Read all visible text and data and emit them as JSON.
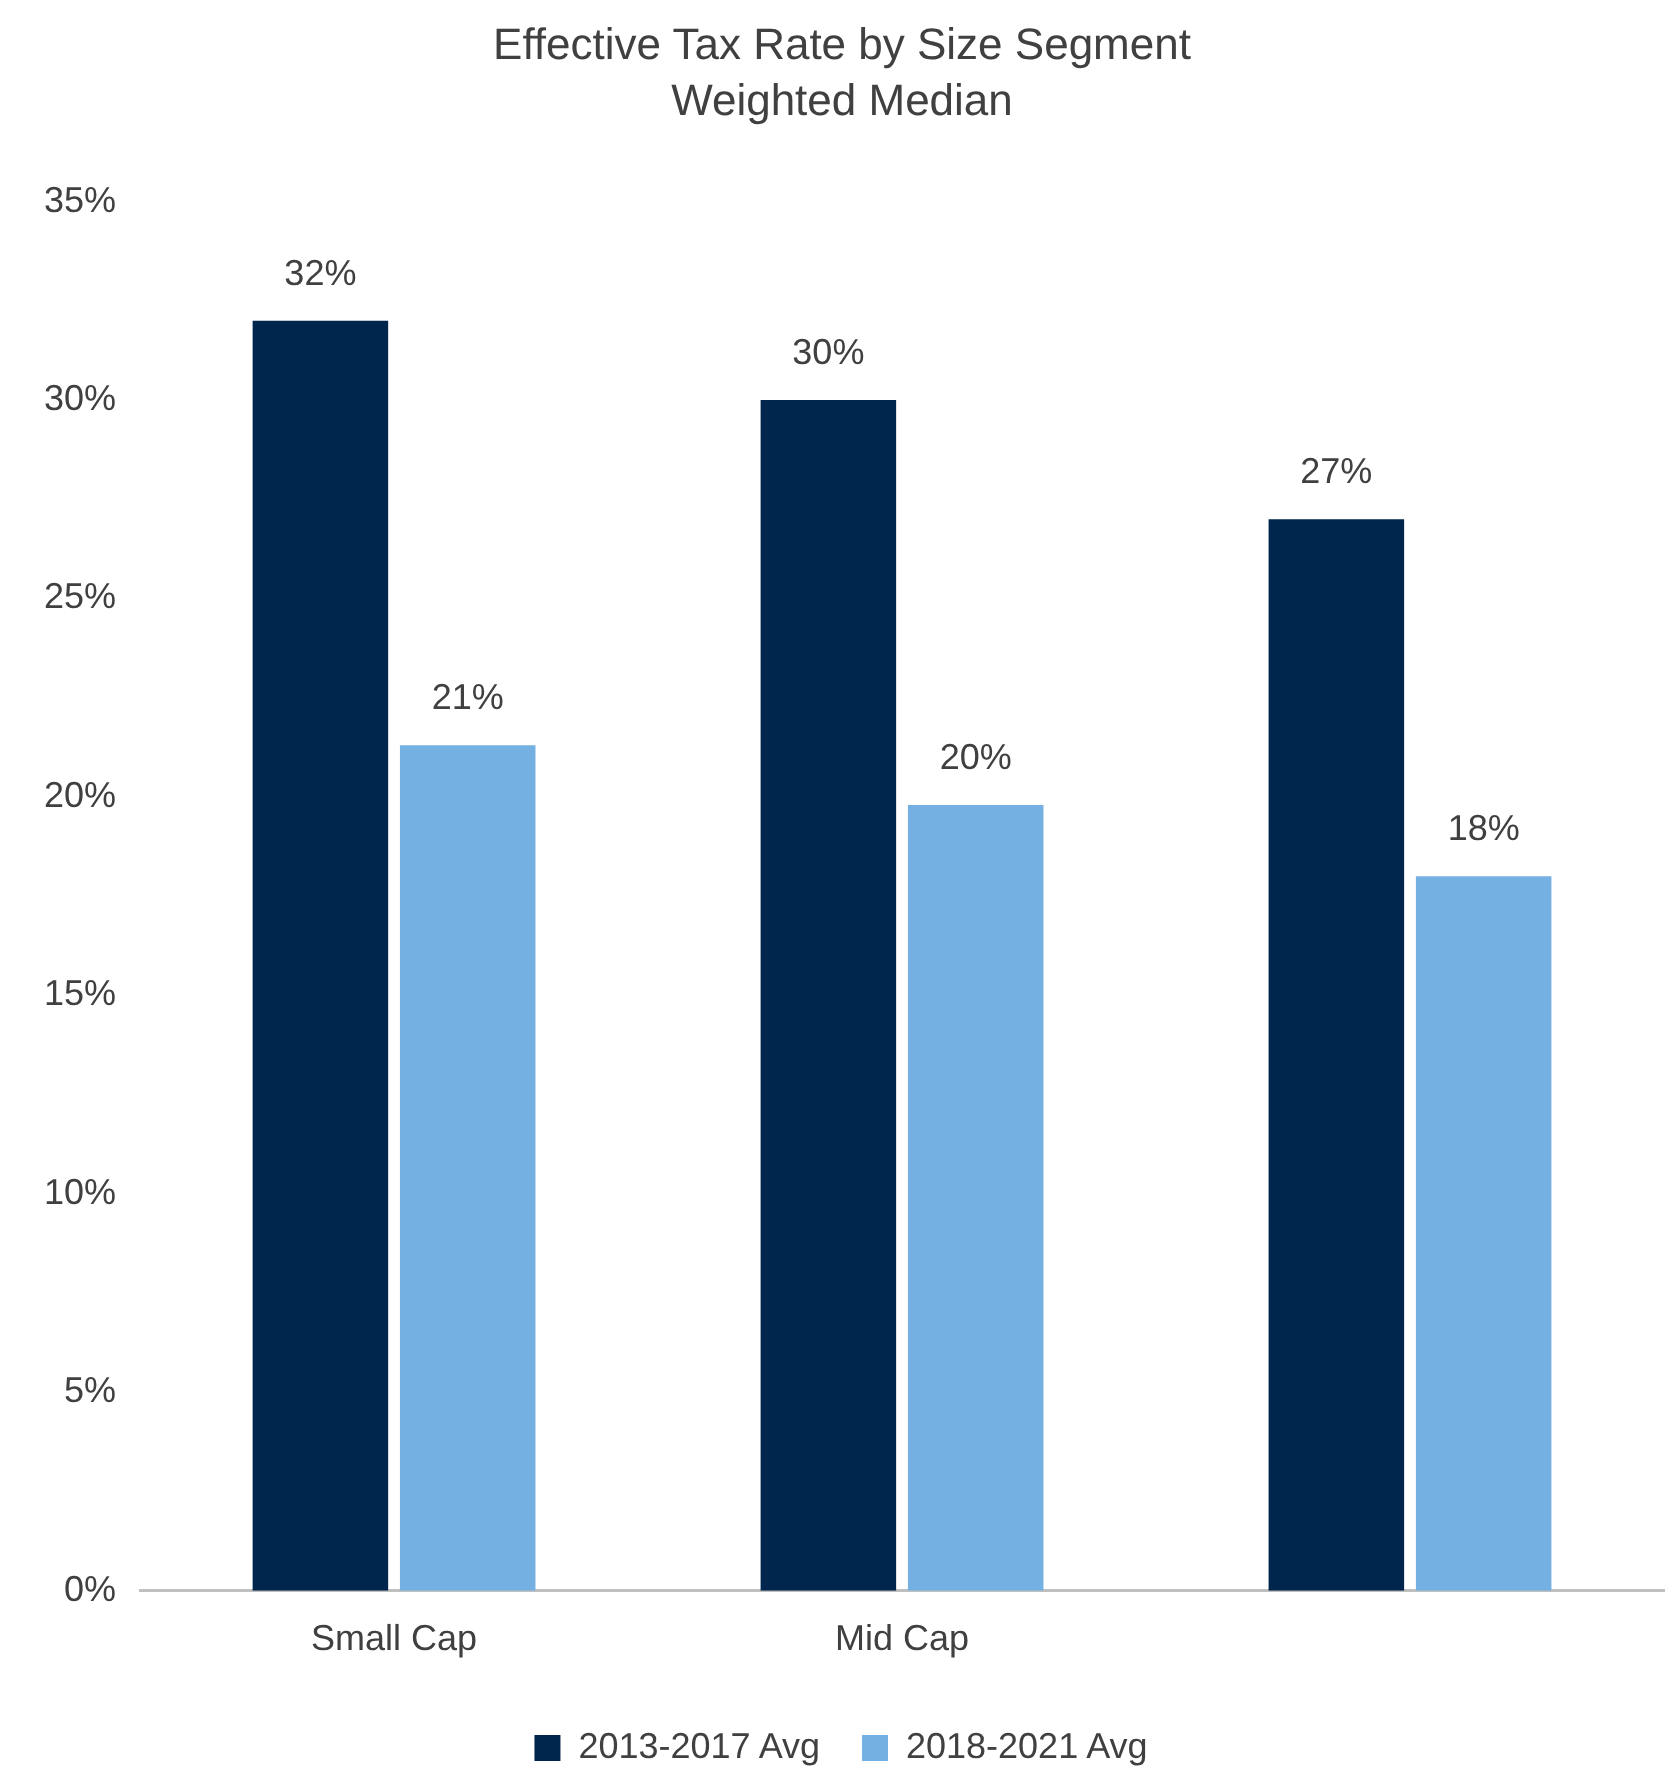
{
  "chart_data": {
    "type": "bar",
    "title": "Effective Tax Rate by Size Segment",
    "subtitle": "Weighted Median",
    "categories": [
      "Small Cap",
      "Mid Cap",
      null
    ],
    "series": [
      {
        "name": "2013-2017 Avg",
        "color": "#00264d",
        "values": [
          32,
          30,
          27
        ],
        "value_labels": [
          "32%",
          "30%",
          "27%"
        ]
      },
      {
        "name": "2018-2021 Avg",
        "color": "#74b0e2",
        "values": [
          21.3,
          19.8,
          18
        ],
        "value_labels": [
          "21%",
          "20%",
          "18%"
        ]
      }
    ],
    "ylim": [
      0,
      35
    ],
    "yticks": [
      {
        "value": 0,
        "label": "0%"
      },
      {
        "value": 5,
        "label": "5%"
      },
      {
        "value": 10,
        "label": "10%"
      },
      {
        "value": 15,
        "label": "15%"
      },
      {
        "value": 20,
        "label": "20%"
      },
      {
        "value": 25,
        "label": "25%"
      },
      {
        "value": 30,
        "label": "30%"
      },
      {
        "value": 35,
        "label": "35%"
      }
    ],
    "grid": false,
    "legend": "bottom"
  }
}
